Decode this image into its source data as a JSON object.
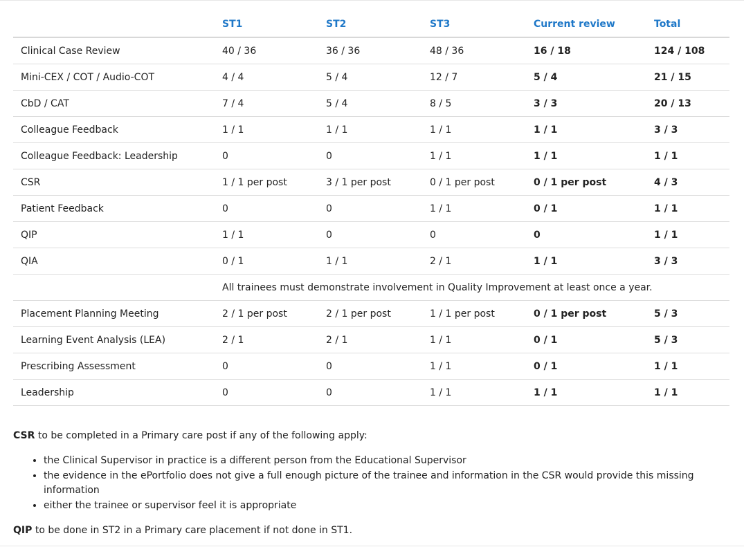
{
  "table": {
    "headers": [
      "",
      "ST1",
      "ST2",
      "ST3",
      "Current review",
      "Total"
    ],
    "rows": [
      {
        "label": "Clinical Case Review",
        "st1": "40 / 36",
        "st2": "36 / 36",
        "st3": "48 / 36",
        "current": "16 / 18",
        "total": "124 / 108"
      },
      {
        "label": "Mini-CEX / COT / Audio-COT",
        "st1": "4 / 4",
        "st2": "5 / 4",
        "st3": "12 / 7",
        "current": "5 / 4",
        "total": "21 / 15"
      },
      {
        "label": "CbD / CAT",
        "st1": "7 / 4",
        "st2": "5 / 4",
        "st3": "8 / 5",
        "current": "3 / 3",
        "total": "20 / 13"
      },
      {
        "label": "Colleague Feedback",
        "st1": "1 / 1",
        "st2": "1 / 1",
        "st3": "1 / 1",
        "current": "1 / 1",
        "total": "3 / 3"
      },
      {
        "label": "Colleague Feedback: Leadership",
        "st1": "0",
        "st2": "0",
        "st3": "1 / 1",
        "current": "1 / 1",
        "total": "1 / 1"
      },
      {
        "label": "CSR",
        "st1": "1 / 1 per post",
        "st2": "3 / 1 per post",
        "st3": "0 / 1 per post",
        "current": "0 / 1 per post",
        "total": "4 / 3"
      },
      {
        "label": "Patient Feedback",
        "st1": "0",
        "st2": "0",
        "st3": "1 / 1",
        "current": "0 / 1",
        "total": "1 / 1"
      },
      {
        "label": "QIP",
        "st1": "1 / 1",
        "st2": "0",
        "st3": "0",
        "current": "0",
        "total": "1 / 1"
      },
      {
        "label": "QIA",
        "st1": "0 / 1",
        "st2": "1 / 1",
        "st3": "2 / 1",
        "current": "1 / 1",
        "total": "3 / 3"
      }
    ],
    "qi_note": "All trainees must demonstrate involvement in Quality Improvement at least once a year.",
    "rows2": [
      {
        "label": "Placement Planning Meeting",
        "st1": "2 / 1 per post",
        "st2": "2 / 1 per post",
        "st3": "1 / 1 per post",
        "current": "0 / 1 per post",
        "total": "5 / 3"
      },
      {
        "label": "Learning Event Analysis (LEA)",
        "st1": "2 / 1",
        "st2": "2 / 1",
        "st3": "1 / 1",
        "current": "0 / 1",
        "total": "5 / 3"
      },
      {
        "label": "Prescribing Assessment",
        "st1": "0",
        "st2": "0",
        "st3": "1 / 1",
        "current": "0 / 1",
        "total": "1 / 1"
      },
      {
        "label": "Leadership",
        "st1": "0",
        "st2": "0",
        "st3": "1 / 1",
        "current": "1 / 1",
        "total": "1 / 1"
      }
    ]
  },
  "notes": {
    "csr_term": "CSR",
    "csr_text": " to be completed in a Primary care post if any of the following apply:",
    "bullets": [
      "the Clinical Supervisor in practice is a different person from the Educational Supervisor",
      "the evidence in the ePortfolio does not give a full enough picture of the trainee and information in the CSR would provide this missing information",
      "either the trainee or supervisor feel it is appropriate"
    ],
    "qip_term": "QIP",
    "qip_text": " to be done in ST2 in a Primary care placement if not done in ST1."
  }
}
